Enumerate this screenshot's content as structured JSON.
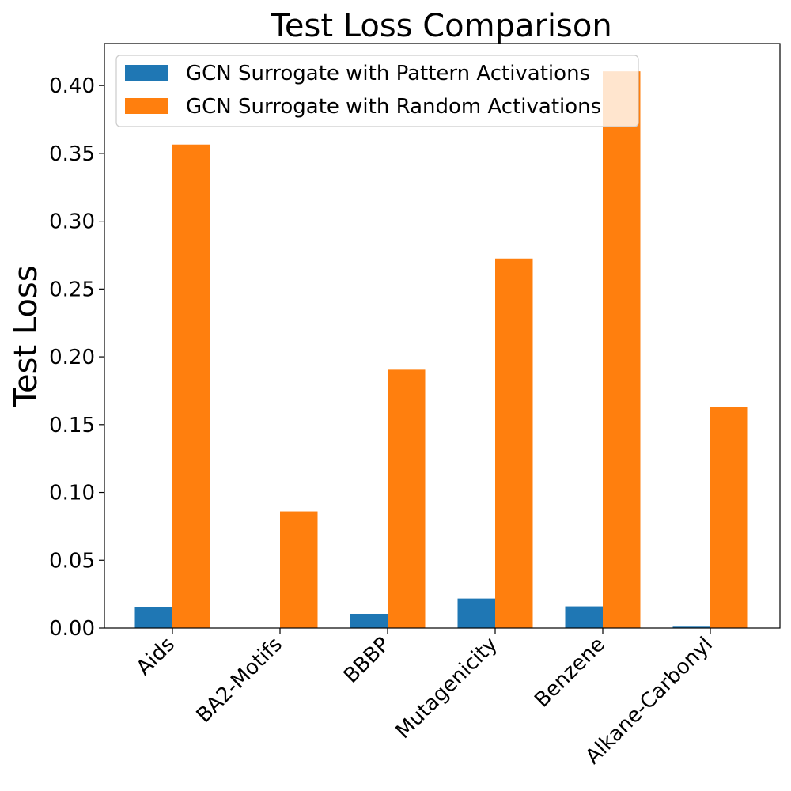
{
  "chart_data": {
    "type": "bar",
    "title": "Test Loss Comparison",
    "xlabel": "",
    "ylabel": "Test Loss",
    "categories": [
      "Aids",
      "BA2-Motifs",
      "BBBP",
      "Mutagenicity",
      "Benzene",
      "Alkane-Carbonyl"
    ],
    "series": [
      {
        "name": "GCN Surrogate with Pattern Activations",
        "color": "#1f77b4",
        "values": [
          0.0155,
          0.0002,
          0.0105,
          0.0218,
          0.016,
          0.001
        ]
      },
      {
        "name": "GCN Surrogate with Random Activations",
        "color": "#ff7f0e",
        "values": [
          0.3565,
          0.086,
          0.1905,
          0.2725,
          0.4105,
          0.163
        ]
      }
    ],
    "ylim": [
      0,
      0.431
    ],
    "yticks": [
      "0.00",
      "0.05",
      "0.10",
      "0.15",
      "0.20",
      "0.25",
      "0.30",
      "0.35",
      "0.40"
    ],
    "ytick_values": [
      0,
      0.05,
      0.1,
      0.15,
      0.2,
      0.25,
      0.3,
      0.35,
      0.4
    ],
    "grid": false,
    "legend_position": "top-left"
  }
}
